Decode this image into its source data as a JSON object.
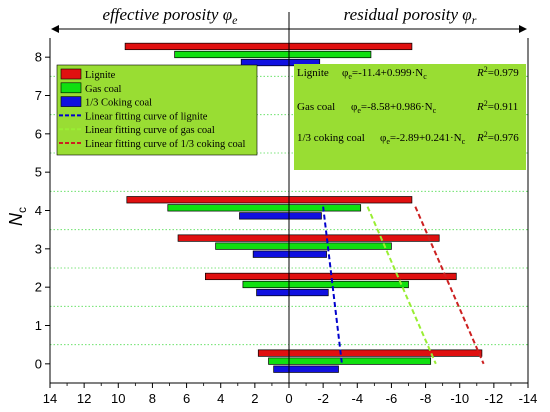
{
  "chart_data": {
    "type": "bar",
    "orientation": "horizontal",
    "ylabel_main": "N",
    "ylabel_sub": "c",
    "header_left": "effective porosity φ",
    "header_left_sub": "e",
    "header_right": "residual porosity φ",
    "header_right_sub": "r",
    "x_ticks": [
      14,
      12,
      10,
      8,
      6,
      4,
      2,
      0,
      -2,
      -4,
      -6,
      -8,
      -10,
      -12,
      -14
    ],
    "xlim": [
      14,
      -14
    ],
    "y_ticks": [
      0,
      1,
      2,
      3,
      4,
      5,
      6,
      7,
      8
    ],
    "ylim": [
      -0.5,
      8.5
    ],
    "grid": "dotted horizontal",
    "legend_position": "top-left",
    "colors": {
      "lignite": "#e01010",
      "gas": "#10e010",
      "coking": "#1010e0",
      "fit_lignite": "#0000cc",
      "fit_gas": "#99ee33",
      "fit_coking": "#cc2020",
      "panel": "#99dd33"
    },
    "series": [
      {
        "name": "Lignite",
        "key": "lignite",
        "bars": [
          {
            "Nc": 0,
            "left": 1.8,
            "right": -11.3
          },
          {
            "Nc": 2,
            "left": 4.9,
            "right": -9.8
          },
          {
            "Nc": 3,
            "left": 6.5,
            "right": -8.8
          },
          {
            "Nc": 4,
            "left": 9.5,
            "right": -7.2
          },
          {
            "Nc": 8,
            "left": 9.6,
            "right": -7.2
          }
        ]
      },
      {
        "name": "Gas coal",
        "key": "gas",
        "bars": [
          {
            "Nc": 0,
            "left": 1.2,
            "right": -8.3
          },
          {
            "Nc": 2,
            "left": 2.7,
            "right": -7.0
          },
          {
            "Nc": 3,
            "left": 4.3,
            "right": -6.0
          },
          {
            "Nc": 4,
            "left": 7.1,
            "right": -4.2
          },
          {
            "Nc": 8,
            "left": 6.7,
            "right": -4.8
          }
        ]
      },
      {
        "name": "1/3 Coking coal",
        "key": "coking",
        "bars": [
          {
            "Nc": 0,
            "left": 0.9,
            "right": -2.9
          },
          {
            "Nc": 2,
            "left": 1.9,
            "right": -2.3
          },
          {
            "Nc": 3,
            "left": 2.1,
            "right": -2.2
          },
          {
            "Nc": 4,
            "left": 2.9,
            "right": -1.9
          },
          {
            "Nc": 8,
            "left": 2.8,
            "right": -1.8
          }
        ]
      }
    ],
    "fits": [
      {
        "name": "Linear fitting curve of lignite",
        "key": "fit_coking_line",
        "color_key": "fit_lignite",
        "points": [
          [
            -2.0,
            4.1
          ],
          [
            -3.1,
            0.0
          ]
        ]
      },
      {
        "name": "Linear fitting curve of gas coal",
        "key": "fit_gas_line",
        "color_key": "fit_gas",
        "points": [
          [
            -4.6,
            4.1
          ],
          [
            -8.6,
            0.0
          ]
        ]
      },
      {
        "name": "Linear fitting curve of 1/3 coking coal",
        "key": "fit_lignite_line",
        "color_key": "fit_coking",
        "points": [
          [
            -7.4,
            4.1
          ],
          [
            -11.4,
            0.0
          ]
        ]
      }
    ],
    "equations": [
      {
        "label": "Lignite",
        "eq": "φ",
        "eq_sub": "e",
        "eq_rest": "=-11.4+0.999·N",
        "eq_rest_sub": "c",
        "r2": "R",
        "r2_sup": "2",
        "r2_val": "=0.979"
      },
      {
        "label": "Gas coal",
        "eq": "φ",
        "eq_sub": "e",
        "eq_rest": "=-8.58+0.986·N",
        "eq_rest_sub": "c",
        "r2": "R",
        "r2_sup": "2",
        "r2_val": "=0.911"
      },
      {
        "label": "1/3 coking coal",
        "eq": "φ",
        "eq_sub": "e",
        "eq_rest": "=-2.89+0.241·N",
        "eq_rest_sub": "c",
        "r2": "R",
        "r2_sup": "2",
        "r2_val": "=0.976"
      }
    ]
  }
}
